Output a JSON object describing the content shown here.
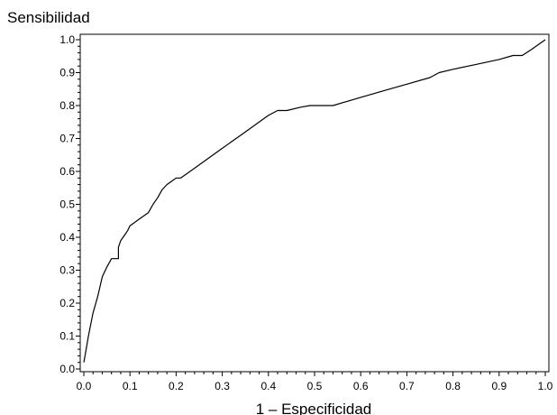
{
  "chart_data": {
    "type": "line",
    "title": "",
    "xlabel": "1 – Especificidad",
    "ylabel": "Sensibilidad",
    "xlim": [
      0,
      1
    ],
    "ylim": [
      0,
      1
    ],
    "xticks": [
      "0.0",
      "0.1",
      "0.2",
      "0.3",
      "0.4",
      "0.5",
      "0.6",
      "0.7",
      "0.8",
      "0.9",
      "1.0"
    ],
    "yticks": [
      "0.0",
      "0.1",
      "0.2",
      "0.3",
      "0.4",
      "0.5",
      "0.6",
      "0.7",
      "0.8",
      "0.9",
      "1.0"
    ],
    "grid": false,
    "series": [
      {
        "x": [
          0.0,
          0.005,
          0.01,
          0.02,
          0.03,
          0.04,
          0.05,
          0.06,
          0.065,
          0.07,
          0.075,
          0.075,
          0.08,
          0.09,
          0.095,
          0.1,
          0.11,
          0.12,
          0.13,
          0.14,
          0.15,
          0.16,
          0.17,
          0.18,
          0.19,
          0.2,
          0.21,
          0.22,
          0.25,
          0.3,
          0.35,
          0.4,
          0.42,
          0.44,
          0.47,
          0.49,
          0.52,
          0.54,
          0.6,
          0.65,
          0.7,
          0.75,
          0.77,
          0.8,
          0.85,
          0.9,
          0.92,
          0.93,
          0.95,
          0.97,
          1.0
        ],
        "y": [
          0.02,
          0.06,
          0.1,
          0.17,
          0.22,
          0.28,
          0.31,
          0.335,
          0.335,
          0.335,
          0.335,
          0.37,
          0.39,
          0.41,
          0.42,
          0.435,
          0.445,
          0.455,
          0.465,
          0.475,
          0.5,
          0.52,
          0.545,
          0.56,
          0.57,
          0.58,
          0.58,
          0.59,
          0.62,
          0.67,
          0.72,
          0.77,
          0.785,
          0.785,
          0.795,
          0.8,
          0.8,
          0.8,
          0.825,
          0.845,
          0.865,
          0.885,
          0.9,
          0.91,
          0.925,
          0.94,
          0.948,
          0.952,
          0.952,
          0.97,
          1.0
        ]
      }
    ]
  }
}
